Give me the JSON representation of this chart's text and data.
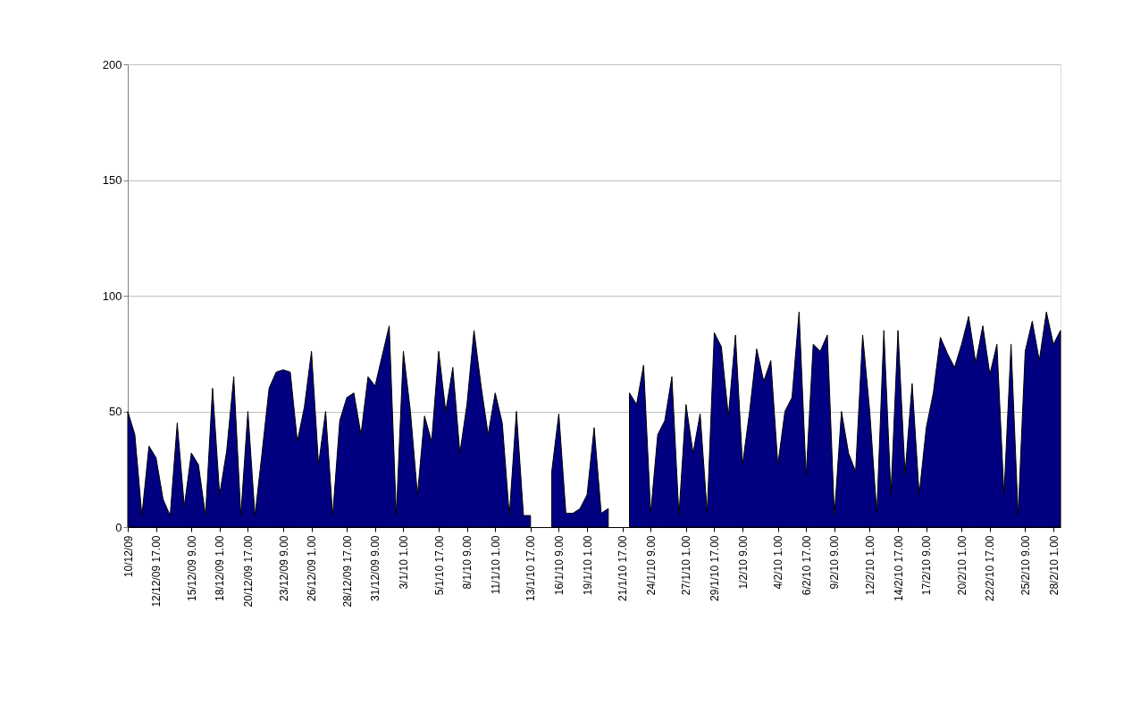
{
  "chart_data": {
    "type": "area",
    "categories": [
      "10/12/09",
      null,
      null,
      null,
      "12/12/09 17.00",
      null,
      null,
      null,
      null,
      "15/12/09 9.00",
      null,
      null,
      null,
      "18/12/09 1.00",
      null,
      null,
      null,
      "20/12/09 17.00",
      null,
      null,
      null,
      null,
      "23/12/09 9.00",
      null,
      null,
      null,
      "26/12/09 1.00",
      null,
      null,
      null,
      null,
      "28/12/09 17.00",
      null,
      null,
      null,
      "31/12/09 9.00",
      null,
      null,
      null,
      "3/1/10 1.00",
      null,
      null,
      null,
      null,
      "5/1/10 17.00",
      null,
      null,
      null,
      "8/1/10 9.00",
      null,
      null,
      null,
      "11/1/10 1.00",
      null,
      null,
      null,
      null,
      "13/1/10 17.00",
      null,
      null,
      null,
      "16/1/10 9.00",
      null,
      null,
      null,
      "19/1/10 1.00",
      null,
      null,
      null,
      null,
      "21/1/10 17.00",
      null,
      null,
      null,
      "24/1/10 9.00",
      null,
      null,
      null,
      null,
      "27/1/10 1.00",
      null,
      null,
      null,
      "29/1/10 17.00",
      null,
      null,
      null,
      "1/2/10 9.00",
      null,
      null,
      null,
      null,
      "4/2/10 1.00",
      null,
      null,
      null,
      "6/2/10 17.00",
      null,
      null,
      null,
      "9/2/10 9.00",
      null,
      null,
      null,
      null,
      "12/2/10 1.00",
      null,
      null,
      null,
      "14/2/10 17.00",
      null,
      null,
      null,
      "17/2/10 9.00",
      null,
      null,
      null,
      null,
      "20/2/10 1.00",
      null,
      null,
      null,
      "22/2/10 17.00",
      null,
      null,
      null,
      null,
      "25/2/10 9.00",
      null,
      null,
      null,
      "28/2/10 1.00",
      null
    ],
    "series": [
      {
        "color": "#000080",
        "values": [
          50,
          40,
          5,
          35,
          30,
          12,
          5,
          45,
          9,
          32,
          27,
          5,
          60,
          14,
          33,
          65,
          5,
          50,
          5,
          32,
          60,
          67,
          68,
          67,
          37,
          52,
          76,
          27,
          50,
          5,
          46,
          56,
          58,
          40,
          65,
          61,
          74,
          87,
          5,
          76,
          50,
          14,
          48,
          37,
          76,
          50,
          69,
          32,
          53,
          85,
          61,
          40,
          58,
          45,
          5,
          50,
          5,
          5,
          null,
          null,
          24,
          49,
          6,
          6,
          8,
          14,
          43,
          6,
          8,
          null,
          null,
          58,
          53,
          70,
          6,
          40,
          46,
          65,
          5,
          53,
          32,
          49,
          6,
          84,
          78,
          48,
          83,
          27,
          50,
          77,
          63,
          72,
          27,
          50,
          56,
          93,
          22,
          79,
          76,
          83,
          5,
          50,
          32,
          24,
          83,
          50,
          6,
          85,
          14,
          85,
          23,
          62,
          14,
          43,
          58,
          82,
          75,
          69,
          79,
          91,
          71,
          87,
          66,
          79,
          14,
          79,
          5,
          76,
          89,
          72,
          93,
          79,
          85
        ]
      }
    ],
    "ylim": [
      0,
      200
    ],
    "yticks": [
      0,
      50,
      100,
      150,
      200
    ],
    "grid": "y"
  }
}
